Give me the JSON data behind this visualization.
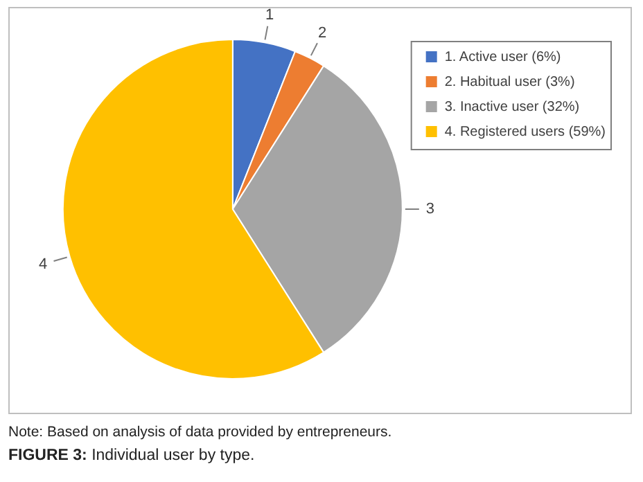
{
  "chart_data": {
    "type": "pie",
    "title": "FIGURE 3: Individual user by type.",
    "categories": [
      "1. Active user (6%)",
      "2. Habitual user (3%)",
      "3. Inactive user (32%)",
      "4. Registered users (59%)"
    ],
    "values": [
      6,
      3,
      32,
      59
    ],
    "colors": [
      "#4472c4",
      "#ed7d31",
      "#a5a5a5",
      "#ffc000"
    ],
    "legend": "top right",
    "annotations": [
      {
        "text": "1",
        "x": "1. Active user (6%)"
      },
      {
        "text": "2",
        "x": "2. Habitual user (3%)"
      },
      {
        "text": "3",
        "x": "3. Inactive user (32%)"
      },
      {
        "text": "4",
        "x": "4. Registered users (59%)"
      },
      "Note: Based on analysis of data provided by entrepreneurs."
    ]
  }
}
